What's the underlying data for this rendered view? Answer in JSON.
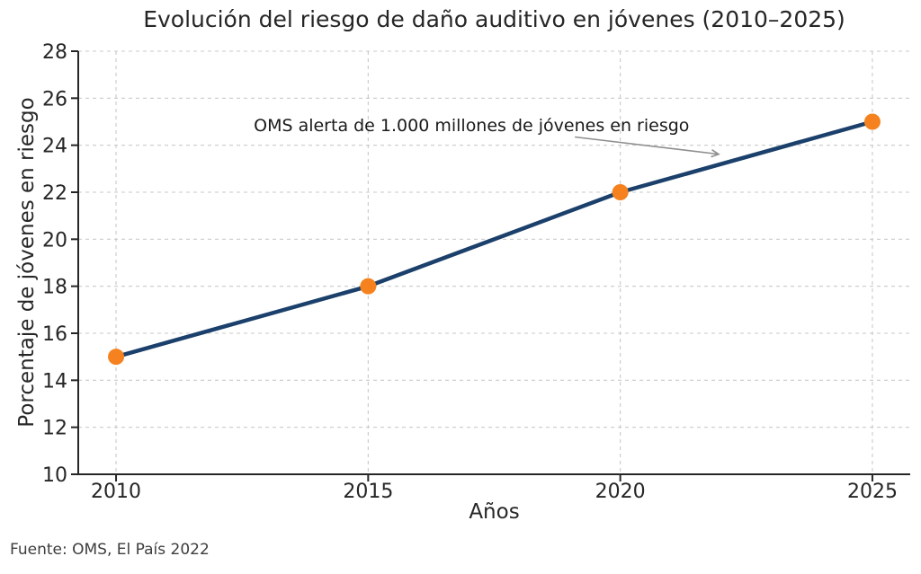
{
  "page": {
    "background": "#ffffff"
  },
  "source_note": "Fuente: OMS, El País 2022",
  "chart_data": {
    "type": "line",
    "title": "Evolución del riesgo de daño auditivo en jóvenes (2010–2025)",
    "xlabel": "Años",
    "ylabel": "Porcentaje de jóvenes en riesgo",
    "x": [
      2010,
      2015,
      2020,
      2025
    ],
    "values": [
      15,
      18,
      22,
      25
    ],
    "xticks": [
      2010,
      2015,
      2020,
      2025
    ],
    "yticks": [
      10,
      12,
      14,
      16,
      18,
      20,
      22,
      24,
      26,
      28
    ],
    "xlim": [
      2009.25,
      2025.75
    ],
    "ylim": [
      10,
      28
    ],
    "grid": true,
    "grid_style": "dashed",
    "legend": "none",
    "colors": {
      "line": "#1b406b",
      "marker": "#f5821f",
      "grid": "#c9c9c9",
      "axis": "#262626",
      "tick_label": "#262626",
      "annotation_arrow": "#8e8e8e"
    },
    "annotation": {
      "text": "OMS alerta de 1.000 millones de jóvenes en riesgo",
      "text_xy": [
        2017.05,
        24.8
      ],
      "arrow_from": [
        2019.1,
        24.35
      ],
      "arrow_to": [
        2021.95,
        23.62
      ]
    }
  }
}
